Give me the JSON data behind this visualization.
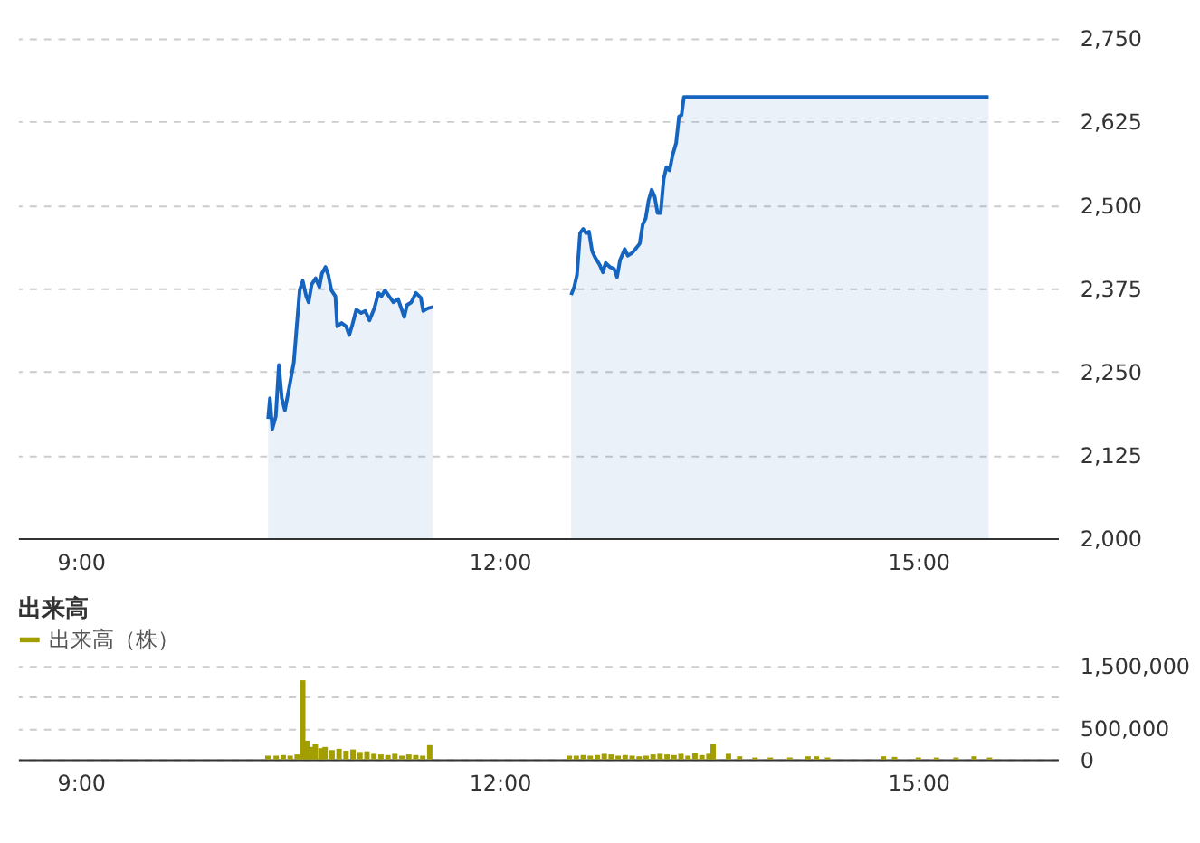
{
  "chart_data": [
    {
      "type": "area",
      "xlim": [
        8.55,
        16.0
      ],
      "xticks": [
        {
          "value": 9,
          "label": "9:00"
        },
        {
          "value": 12,
          "label": "12:00"
        },
        {
          "value": 15,
          "label": "15:00"
        }
      ],
      "ylim": [
        2000,
        2750
      ],
      "yticks": [
        {
          "value": 2000,
          "label": "2,000"
        },
        {
          "value": 2125,
          "label": "2,125"
        },
        {
          "value": 2250,
          "label": "2,250"
        },
        {
          "value": 2375,
          "label": "2,375"
        },
        {
          "value": 2500,
          "label": "2,500"
        },
        {
          "value": 2625,
          "label": "2,625"
        },
        {
          "value": 2750,
          "label": "2,750"
        }
      ],
      "grid": "y",
      "x": [
        10.342,
        10.355,
        10.372,
        10.397,
        10.419,
        10.44,
        10.462,
        10.491,
        10.526,
        10.547,
        10.568,
        10.59,
        10.615,
        10.632,
        10.654,
        10.683,
        10.709,
        10.727,
        10.753,
        10.773,
        10.795,
        10.824,
        10.837,
        10.868,
        10.901,
        10.923,
        10.945,
        10.974,
        11.009,
        11.038,
        11.068,
        11.103,
        11.132,
        11.154,
        11.179,
        11.209,
        11.24,
        11.273,
        11.317,
        11.337,
        11.368,
        11.401,
        11.436,
        11.453,
        11.487,
        11.522,
        12.0,
        12.513,
        12.535,
        12.555,
        12.577,
        12.599,
        12.619,
        12.641,
        12.663,
        12.683,
        12.718,
        12.74,
        12.76,
        12.791,
        12.821,
        12.842,
        12.863,
        12.897,
        12.919,
        12.949,
        12.974,
        13.004,
        13.026,
        13.047,
        13.068,
        13.09,
        13.112,
        13.132,
        13.154,
        13.176,
        13.196,
        13.218,
        13.24,
        13.265,
        13.286,
        13.304,
        13.321,
        15.504
      ],
      "series": [
        {
          "color": "#1565c0",
          "values": [
            2179,
            2210,
            2164,
            2183,
            2260,
            2210,
            2192,
            2224,
            2264,
            2318,
            2372,
            2386,
            2363,
            2354,
            2381,
            2390,
            2377,
            2397,
            2407,
            2395,
            2372,
            2363,
            2318,
            2323,
            2318,
            2305,
            2320,
            2343,
            2338,
            2341,
            2327,
            2345,
            2368,
            2363,
            2372,
            2363,
            2354,
            2359,
            2332,
            2350,
            2354,
            2368,
            2361,
            2341,
            2345,
            2347,
            null,
            2365,
            2377,
            2395,
            2458,
            2464,
            2458,
            2460,
            2431,
            2422,
            2410,
            2399,
            2413,
            2407,
            2404,
            2392,
            2417,
            2434,
            2424,
            2428,
            2434,
            2442,
            2471,
            2480,
            2507,
            2523,
            2512,
            2488,
            2488,
            2539,
            2557,
            2552,
            2575,
            2593,
            2633,
            2635,
            2662,
            2662
          ]
        }
      ]
    },
    {
      "type": "bar",
      "title": "出来高",
      "xlim": [
        8.55,
        16.0
      ],
      "xticks": [
        {
          "value": 9,
          "label": "9:00"
        },
        {
          "value": 12,
          "label": "12:00"
        },
        {
          "value": 15,
          "label": "15:00"
        }
      ],
      "ylim": [
        0,
        1500000
      ],
      "yticks": [
        0,
        {
          "value": 500000,
          "label": "500,000"
        },
        {
          "value": 1000000,
          "label": null
        },
        {
          "value": 1500000,
          "label": "1,500,000"
        }
      ],
      "grid": "y",
      "legend": "top left",
      "x": [
        10.34,
        10.4,
        10.45,
        10.5,
        10.55,
        10.59,
        10.62,
        10.65,
        10.68,
        10.72,
        10.75,
        10.8,
        10.85,
        10.9,
        10.95,
        11.0,
        11.05,
        11.1,
        11.15,
        11.2,
        11.25,
        11.3,
        11.35,
        11.4,
        11.45,
        11.5,
        12.5,
        12.55,
        12.6,
        12.65,
        12.7,
        12.75,
        12.8,
        12.85,
        12.9,
        12.95,
        13.0,
        13.05,
        13.1,
        13.15,
        13.2,
        13.25,
        13.3,
        13.35,
        13.4,
        13.45,
        13.5,
        13.53,
        13.64,
        13.72,
        13.83,
        13.94,
        14.08,
        14.21,
        14.27,
        14.35,
        14.75,
        14.83,
        15.0,
        15.13,
        15.27,
        15.4,
        15.51
      ],
      "series": [
        {
          "name": "出来高（株）",
          "color": "#a39e00",
          "values": [
            60000,
            60000,
            70000,
            60000,
            80000,
            1270000,
            300000,
            200000,
            250000,
            180000,
            200000,
            150000,
            170000,
            140000,
            160000,
            120000,
            130000,
            90000,
            80000,
            70000,
            90000,
            60000,
            80000,
            70000,
            60000,
            230000,
            60000,
            60000,
            70000,
            60000,
            70000,
            90000,
            80000,
            60000,
            70000,
            60000,
            50000,
            60000,
            80000,
            90000,
            80000,
            70000,
            90000,
            60000,
            100000,
            70000,
            90000,
            250000,
            90000,
            50000,
            30000,
            30000,
            30000,
            50000,
            50000,
            30000,
            50000,
            40000,
            30000,
            30000,
            30000,
            50000,
            30000
          ]
        }
      ]
    }
  ]
}
